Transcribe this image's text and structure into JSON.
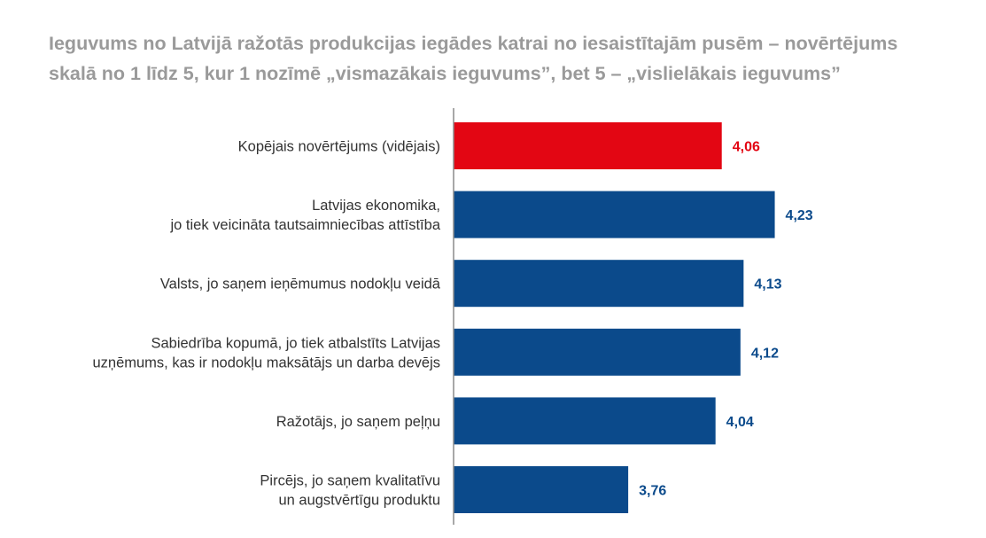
{
  "title_lines": [
    "Ieguvums no Latvijā ražotās produkcijas iegādes katrai no iesaistītajām pusēm – novērtējums",
    "skalā no 1 līdz 5, kur 1 nozīmē „vismazākais ieguvums”, bet 5 – „vislielākais ieguvums”"
  ],
  "colors": {
    "highlight": "#e30613",
    "bar": "#0b4a8b",
    "axis": "#8c8c8c",
    "title": "#9a9a9a"
  },
  "chart_data": {
    "type": "bar",
    "orientation": "horizontal",
    "title": "Ieguvums no Latvijā ražotās produkcijas iegādes katrai no iesaistītajām pusēm – novērtējums skalā no 1 līdz 5, kur 1 nozīmē „vismazākais ieguvums”, bet 5 – „vislielākais ieguvums”",
    "categories": [
      [
        "Kopējais novērtējums (vidējais)"
      ],
      [
        "Latvijas ekonomika,",
        "jo tiek veicināta tautsaimniecības attīstība"
      ],
      [
        "Valsts, jo saņem ieņēmumus nodokļu veidā"
      ],
      [
        "Sabiedrība kopumā, jo tiek atbalstīts Latvijas",
        "uzņēmums, kas ir nodokļu maksātājs un darba devējs"
      ],
      [
        "Ražotājs, jo saņem peļņu"
      ],
      [
        "Pircējs, jo saņem kvalitatīvu",
        "un augstvērtīgu produktu"
      ]
    ],
    "values": [
      4.06,
      4.23,
      4.13,
      4.12,
      4.04,
      3.76
    ],
    "value_labels": [
      "4,06",
      "4,23",
      "4,13",
      "4,12",
      "4,04",
      "3,76"
    ],
    "highlight_index": 0,
    "xlim": [
      3.2,
      4.5
    ],
    "grid": false,
    "legend": "none"
  }
}
